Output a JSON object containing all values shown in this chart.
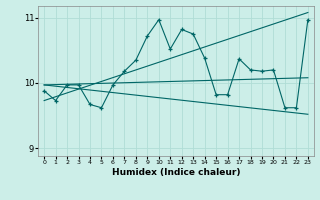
{
  "xlabel": "Humidex (Indice chaleur)",
  "ylabel": "",
  "background_color": "#cceee8",
  "plot_bg_color": "#cceee8",
  "line_color": "#006666",
  "grid_color": "#b0ddd6",
  "xlim": [
    -0.5,
    23.5
  ],
  "ylim": [
    8.88,
    11.18
  ],
  "yticks": [
    9,
    10,
    11
  ],
  "xticks": [
    0,
    1,
    2,
    3,
    4,
    5,
    6,
    7,
    8,
    9,
    10,
    11,
    12,
    13,
    14,
    15,
    16,
    17,
    18,
    19,
    20,
    21,
    22,
    23
  ],
  "series1_x": [
    0,
    1,
    2,
    3,
    4,
    5,
    6,
    7,
    8,
    9,
    10,
    11,
    12,
    13,
    14,
    15,
    16,
    17,
    18,
    19,
    20,
    21,
    22,
    23
  ],
  "series1_y": [
    9.88,
    9.73,
    9.97,
    9.97,
    9.67,
    9.62,
    9.97,
    10.18,
    10.35,
    10.72,
    10.97,
    10.52,
    10.82,
    10.75,
    10.38,
    9.82,
    9.82,
    10.37,
    10.2,
    10.18,
    10.2,
    9.62,
    9.62,
    10.97
  ],
  "trend1_x": [
    0,
    23
  ],
  "trend1_y": [
    9.97,
    10.08
  ],
  "trend2_x": [
    0,
    23
  ],
  "trend2_y": [
    9.97,
    9.52
  ],
  "trend3_x": [
    0,
    23
  ],
  "trend3_y": [
    9.73,
    11.08
  ]
}
